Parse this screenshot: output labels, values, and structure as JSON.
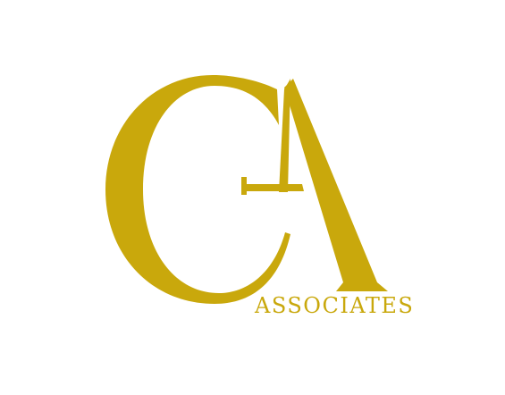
{
  "logo": {
    "monogram_letters": "CA",
    "wordmark": "ASSOCIATES",
    "brand_color": "#C9A80C",
    "background_color": "#FFFFFF"
  }
}
